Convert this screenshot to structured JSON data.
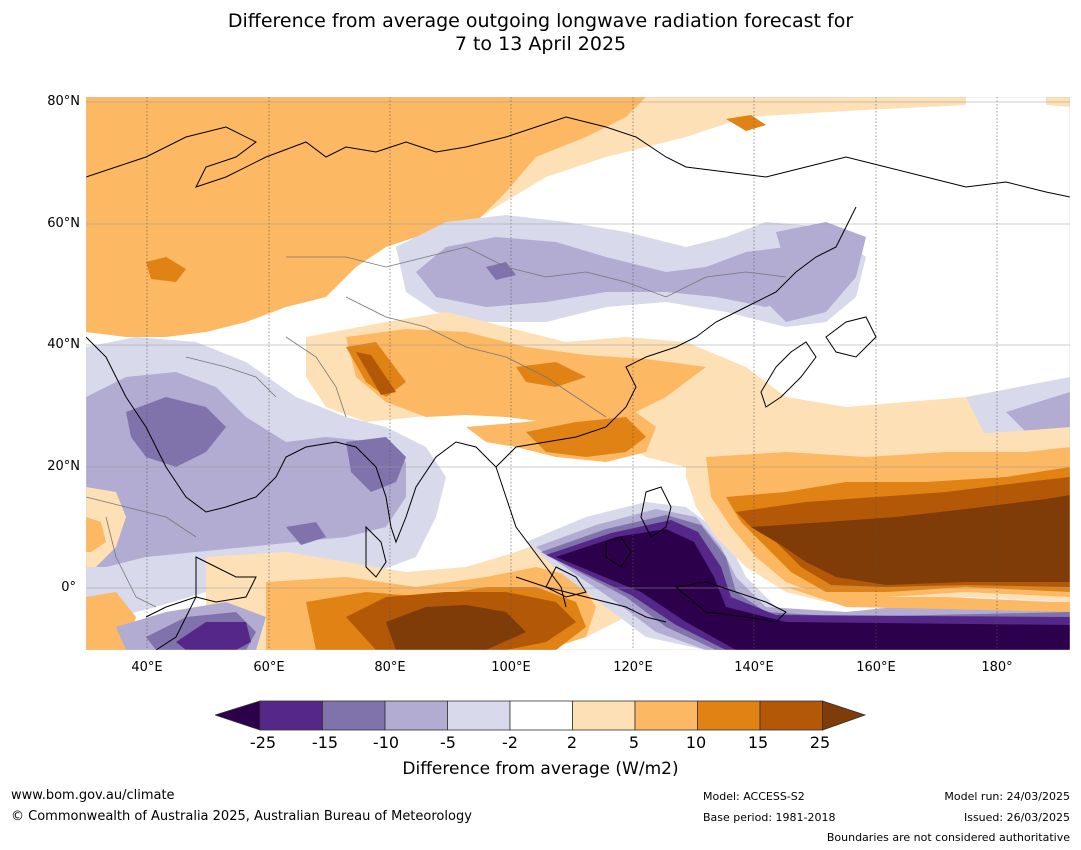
{
  "title_line1": "Difference from average outgoing longwave radiation forecast for",
  "title_line2": "7 to 13 April 2025",
  "lat_labels": [
    "80°N",
    "60°N",
    "40°N",
    "20°N",
    "0°"
  ],
  "lon_labels": [
    "40°E",
    "60°E",
    "80°E",
    "100°E",
    "120°E",
    "140°E",
    "160°E",
    "180°"
  ],
  "colorbar": {
    "ticks": [
      "-25",
      "-15",
      "-10",
      "-5",
      "-2",
      "2",
      "5",
      "10",
      "15",
      "25"
    ],
    "colors": [
      "#2d004b",
      "#542788",
      "#8073ac",
      "#b2abd2",
      "#d8daeb",
      "#ffffff",
      "#fee0b6",
      "#fdb863",
      "#e08214",
      "#b35806",
      "#7f3b08"
    ],
    "label": "Difference from average (W/m2)"
  },
  "footer": {
    "url": "www.bom.gov.au/climate",
    "copyright": "© Commonwealth of Australia 2025, Australian Bureau of Meteorology",
    "model": "Model: ACCESS-S2",
    "base_period": "Base period: 1981-2018",
    "model_run": "Model run: 24/03/2025",
    "issued": "Issued: 26/03/2025",
    "boundaries": "Boundaries are not considered authoritative"
  }
}
